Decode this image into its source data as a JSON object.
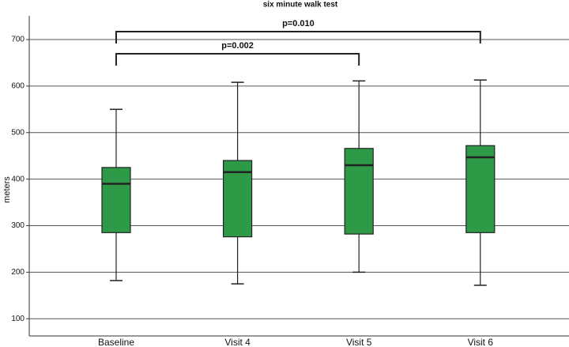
{
  "chart_data": {
    "type": "box",
    "title": "six minute walk test",
    "y_label": "meters",
    "categories": [
      "Baseline",
      "Visit 4",
      "Visit 5",
      "Visit 6"
    ],
    "min": [
      182,
      175,
      200,
      172
    ],
    "q1": [
      285,
      276,
      282,
      285
    ],
    "median": [
      390,
      415,
      430,
      447
    ],
    "q3": [
      425,
      440,
      466,
      472
    ],
    "max": [
      550,
      608,
      611,
      613
    ],
    "color": "#2e9a47",
    "ylim": [
      63,
      751
    ],
    "yticks": [
      100,
      200,
      300,
      400,
      500,
      600,
      700
    ],
    "grid": true,
    "annotations": [
      {
        "text": "p=0.010",
        "pair": [
          "Baseline",
          "Visit 6"
        ]
      },
      {
        "text": "p=0.002",
        "pair": [
          "Baseline",
          "Visit 5"
        ]
      }
    ]
  }
}
